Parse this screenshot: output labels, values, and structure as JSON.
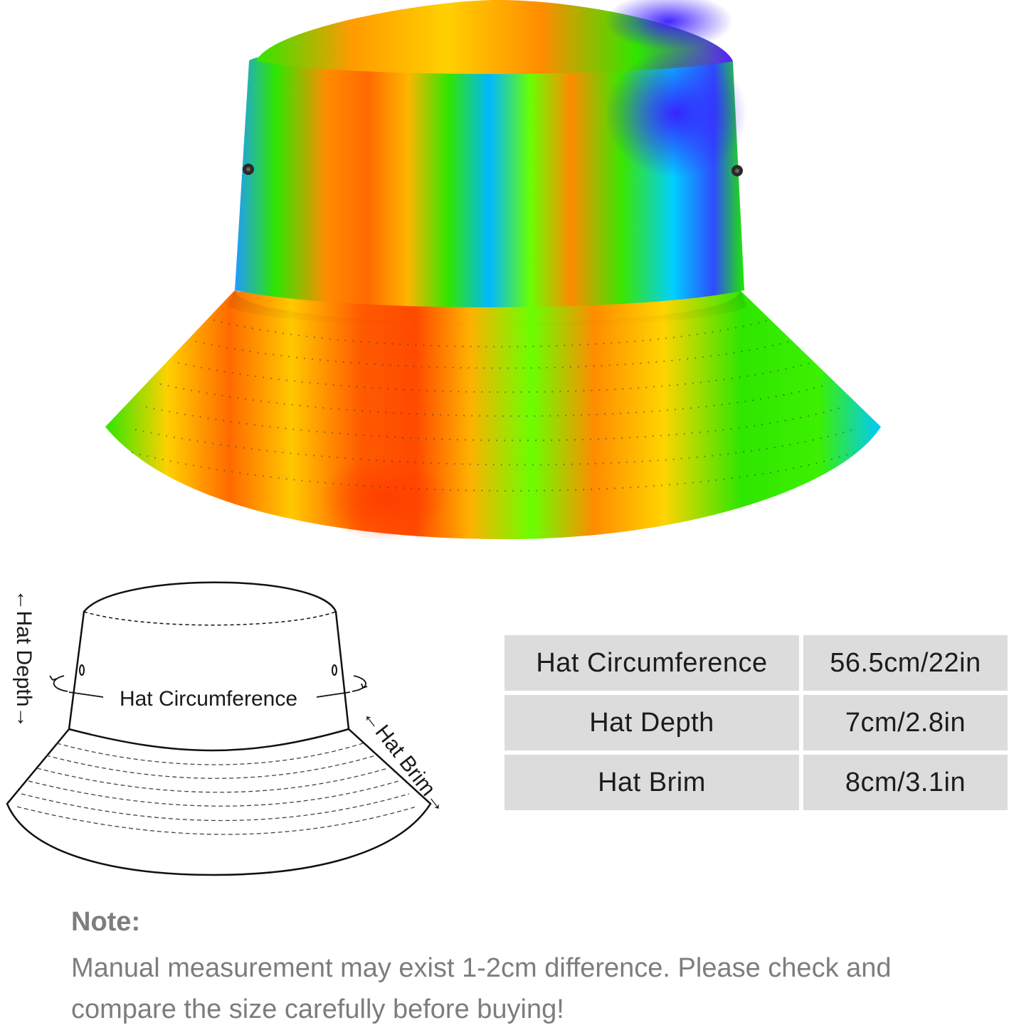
{
  "diagram": {
    "depth_label": "←Hat Depth→",
    "circumference_label": "Hat Circumference",
    "brim_label": "←Hat Brim→"
  },
  "size_table": [
    {
      "name": "Hat Circumference",
      "value": "56.5cm/22in"
    },
    {
      "name": "Hat Depth",
      "value": "7cm/2.8in"
    },
    {
      "name": "Hat Brim",
      "value": "8cm/3.1in"
    }
  ],
  "note": {
    "title": "Note:",
    "body": "Manual measurement may exist 1-2cm difference. Please check and compare the size carefully before buying!"
  },
  "colors": {
    "table_cell": "#dcdcdc",
    "note_text": "#7d7d7d",
    "tie_dye": [
      "#ff4a00",
      "#ff8c00",
      "#ffd000",
      "#2ee600",
      "#00c8ff",
      "#1f4fff",
      "#7a00ff"
    ]
  }
}
